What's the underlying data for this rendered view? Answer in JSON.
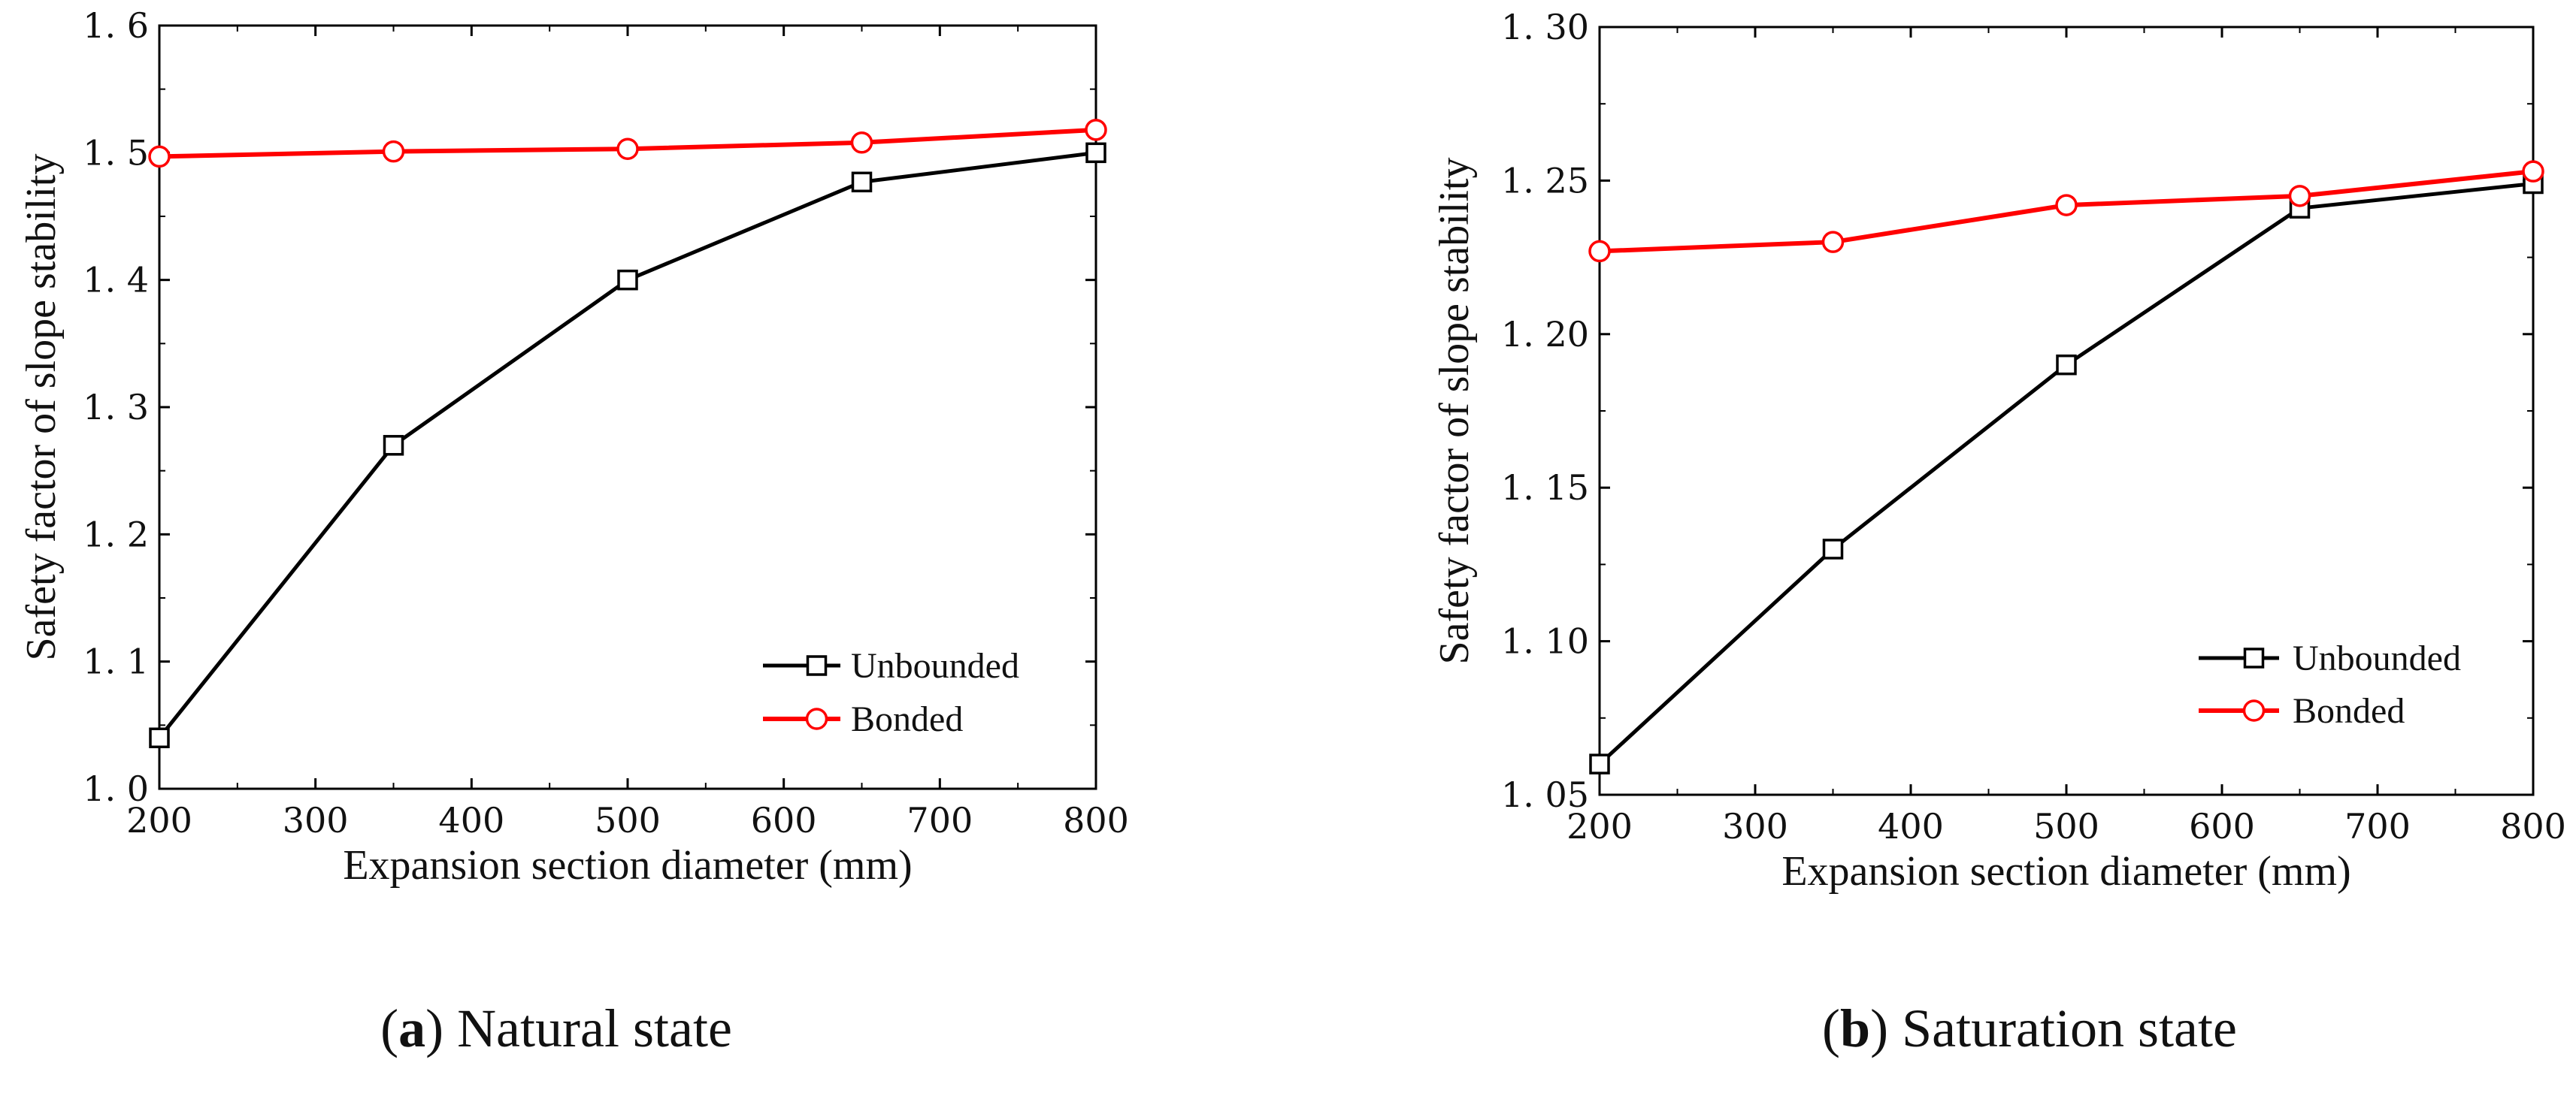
{
  "chart_data": [
    {
      "type": "line",
      "panel_id": "a",
      "caption_letter": "a",
      "caption_text": "Natural state",
      "xlabel": "Expansion section diameter (mm)",
      "ylabel": "Safety factor of slope stability",
      "xlim": [
        200,
        800
      ],
      "ylim": [
        1.0,
        1.6
      ],
      "xticks": [
        200,
        300,
        400,
        500,
        600,
        700,
        800
      ],
      "xtick_labels": [
        "200",
        "300",
        "400",
        "500",
        "600",
        "700",
        "800"
      ],
      "yticks": [
        1.0,
        1.1,
        1.2,
        1.3,
        1.4,
        1.5,
        1.6
      ],
      "ytick_labels": [
        "1. 0",
        "1. 1",
        "1. 2",
        "1. 3",
        "1. 4",
        "1. 5",
        "1. 6"
      ],
      "grid": false,
      "legend_position": "lower-right",
      "series": [
        {
          "name": "Unbounded",
          "marker": "square",
          "color": "#000000",
          "x": [
            200,
            350,
            500,
            650,
            800
          ],
          "y": [
            1.04,
            1.27,
            1.4,
            1.477,
            1.5
          ]
        },
        {
          "name": "Bonded",
          "marker": "circle",
          "color": "#ff0000",
          "x": [
            200,
            350,
            500,
            650,
            800
          ],
          "y": [
            1.497,
            1.501,
            1.503,
            1.508,
            1.518
          ]
        }
      ]
    },
    {
      "type": "line",
      "panel_id": "b",
      "caption_letter": "b",
      "caption_text": "Saturation state",
      "xlabel": "Expansion section diameter (mm)",
      "ylabel": "Safety factor of slope stability",
      "xlim": [
        200,
        800
      ],
      "ylim": [
        1.05,
        1.3
      ],
      "xticks": [
        200,
        300,
        400,
        500,
        600,
        700,
        800
      ],
      "xtick_labels": [
        "200",
        "300",
        "400",
        "500",
        "600",
        "700",
        "800"
      ],
      "yticks": [
        1.05,
        1.1,
        1.15,
        1.2,
        1.25,
        1.3
      ],
      "ytick_labels": [
        "1. 05",
        "1. 10",
        "1. 15",
        "1. 20",
        "1. 25",
        "1. 30"
      ],
      "grid": false,
      "legend_position": "lower-right",
      "series": [
        {
          "name": "Unbounded",
          "marker": "square",
          "color": "#000000",
          "x": [
            200,
            350,
            500,
            650,
            800
          ],
          "y": [
            1.06,
            1.13,
            1.19,
            1.241,
            1.249
          ]
        },
        {
          "name": "Bonded",
          "marker": "circle",
          "color": "#ff0000",
          "x": [
            200,
            350,
            500,
            650,
            800
          ],
          "y": [
            1.227,
            1.23,
            1.242,
            1.245,
            1.253
          ]
        }
      ]
    }
  ]
}
